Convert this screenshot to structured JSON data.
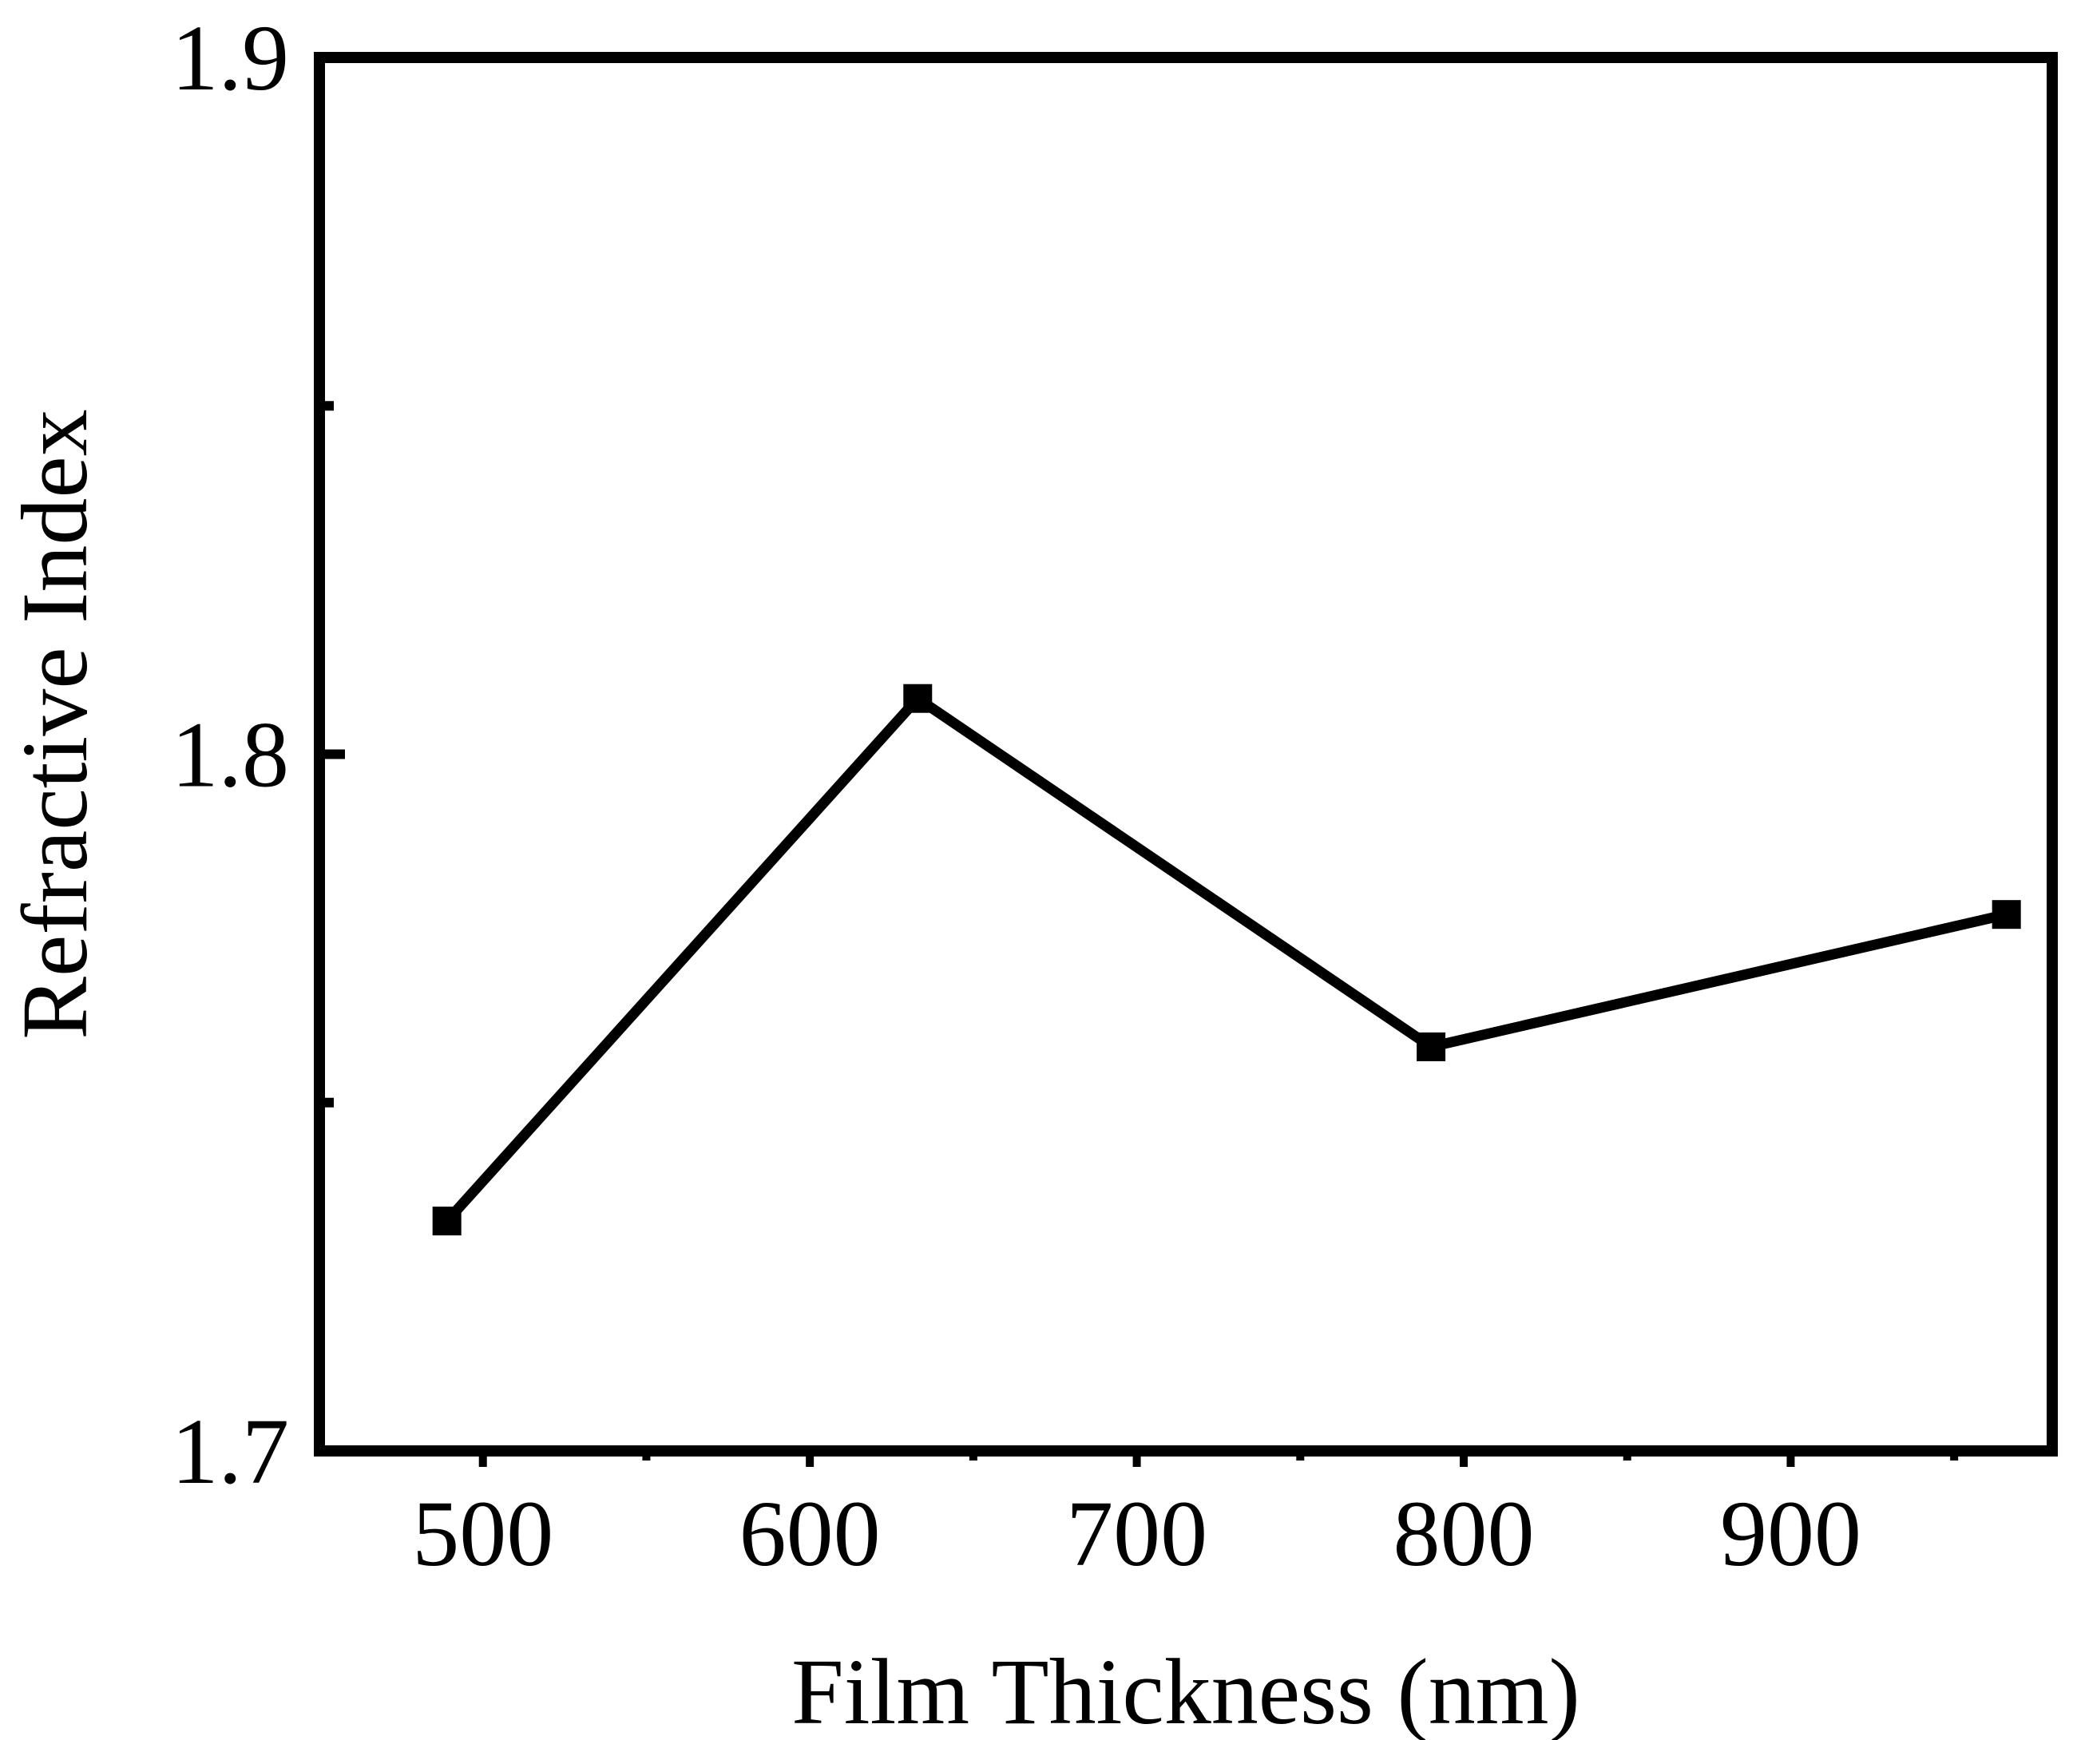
{
  "chart_data": {
    "type": "line",
    "title": "",
    "xlabel": "Film Thickness (nm)",
    "ylabel": "Refractive Index",
    "xlim": [
      450,
      980
    ],
    "ylim": [
      1.7,
      1.9
    ],
    "x_ticks": [
      500,
      600,
      700,
      800,
      900
    ],
    "x_tick_labels": [
      "500",
      "600",
      "700",
      "800",
      "900"
    ],
    "y_ticks": [
      1.7,
      1.8,
      1.9
    ],
    "y_tick_labels": [
      "1.7",
      "1.8",
      "1.9"
    ],
    "y_minor_ticks": [
      1.75,
      1.85
    ],
    "x_minor_ticks": [
      550,
      650,
      750,
      850,
      950
    ],
    "grid": false,
    "marker": "square",
    "color": "#000000",
    "series": [
      {
        "x": [
          489,
          633,
          790,
          966
        ],
        "y": [
          1.733,
          1.808,
          1.758,
          1.777
        ]
      }
    ]
  }
}
